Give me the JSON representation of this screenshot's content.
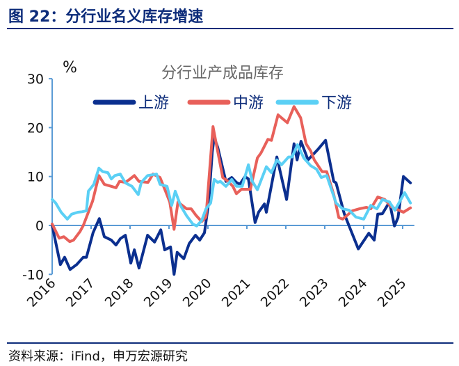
{
  "header": {
    "title": "图 22：分行业名义库存增速"
  },
  "footer": {
    "source": "资料来源：iFind，申万宏源研究"
  },
  "chart_data": {
    "type": "line",
    "title": "分行业产成品库存",
    "ylabel": "%",
    "xlabel": "",
    "x_unit": "year",
    "xlim": [
      2016,
      2025.3
    ],
    "ylim": [
      -10,
      30
    ],
    "yticks": [
      -10,
      0,
      10,
      20,
      30
    ],
    "xticks": [
      "2016",
      "2017",
      "2018",
      "2019",
      "2020",
      "2021",
      "2022",
      "2023",
      "2024",
      "2025"
    ],
    "grid": false,
    "legend": "top",
    "series": [
      {
        "name": "上游",
        "color": "#0b2f8f",
        "points": [
          [
            2016.0,
            0
          ],
          [
            2016.21,
            -8
          ],
          [
            2016.32,
            -6.5
          ],
          [
            2016.46,
            -9
          ],
          [
            2016.63,
            -8
          ],
          [
            2016.8,
            -6.5
          ],
          [
            2016.88,
            -6.5
          ],
          [
            2017.05,
            -1.5
          ],
          [
            2017.21,
            1.4
          ],
          [
            2017.34,
            -2.3
          ],
          [
            2017.52,
            -3
          ],
          [
            2017.64,
            -4
          ],
          [
            2017.75,
            -2.7
          ],
          [
            2017.88,
            -2
          ],
          [
            2018.02,
            -7.7
          ],
          [
            2018.11,
            -5
          ],
          [
            2018.23,
            -8.7
          ],
          [
            2018.45,
            -2
          ],
          [
            2018.63,
            -3.4
          ],
          [
            2018.79,
            -0.9
          ],
          [
            2018.89,
            -5
          ],
          [
            2019.04,
            -4.4
          ],
          [
            2019.13,
            -10
          ],
          [
            2019.21,
            -5.5
          ],
          [
            2019.38,
            -6.8
          ],
          [
            2019.52,
            -3.7
          ],
          [
            2019.68,
            -2
          ],
          [
            2019.79,
            -3
          ],
          [
            2019.91,
            -1.5
          ],
          [
            2020.02,
            4.8
          ],
          [
            2020.11,
            15
          ],
          [
            2020.16,
            18
          ],
          [
            2020.25,
            16
          ],
          [
            2020.46,
            9
          ],
          [
            2020.61,
            9.8
          ],
          [
            2020.73,
            8.8
          ],
          [
            2020.82,
            8.4
          ],
          [
            2020.95,
            10
          ],
          [
            2021.04,
            9.5
          ],
          [
            2021.21,
            0.6
          ],
          [
            2021.3,
            2.7
          ],
          [
            2021.45,
            4.4
          ],
          [
            2021.5,
            2.7
          ],
          [
            2021.77,
            14
          ],
          [
            2022.02,
            5.3
          ],
          [
            2022.21,
            16.7
          ],
          [
            2022.29,
            13.4
          ],
          [
            2022.39,
            17.2
          ],
          [
            2022.57,
            13.4
          ],
          [
            2022.82,
            15.5
          ],
          [
            2023.02,
            17.4
          ],
          [
            2023.23,
            9
          ],
          [
            2023.29,
            8.7
          ],
          [
            2023.5,
            2.4
          ],
          [
            2023.64,
            -0.4
          ],
          [
            2023.86,
            -4.8
          ],
          [
            2024.13,
            -1.6
          ],
          [
            2024.27,
            -3
          ],
          [
            2024.36,
            2.3
          ],
          [
            2024.48,
            2.4
          ],
          [
            2024.66,
            4.8
          ],
          [
            2024.79,
            -0.1
          ],
          [
            2024.88,
            1.6
          ],
          [
            2025.02,
            10
          ],
          [
            2025.2,
            8.7
          ]
        ]
      },
      {
        "name": "中游",
        "color": "#e8605a",
        "points": [
          [
            2016.0,
            0.3
          ],
          [
            2016.18,
            -2.6
          ],
          [
            2016.3,
            -2.3
          ],
          [
            2016.45,
            -3.3
          ],
          [
            2016.55,
            -3
          ],
          [
            2016.71,
            -1.3
          ],
          [
            2016.8,
            0
          ],
          [
            2017.04,
            5
          ],
          [
            2017.2,
            10.2
          ],
          [
            2017.34,
            8.4
          ],
          [
            2017.52,
            8
          ],
          [
            2017.64,
            7.7
          ],
          [
            2017.73,
            9
          ],
          [
            2017.88,
            8.8
          ],
          [
            2018.0,
            9.5
          ],
          [
            2018.11,
            10.2
          ],
          [
            2018.23,
            9
          ],
          [
            2018.46,
            8.8
          ],
          [
            2018.59,
            10.5
          ],
          [
            2018.77,
            9.8
          ],
          [
            2018.91,
            7
          ],
          [
            2019.02,
            4.8
          ],
          [
            2019.13,
            -0.8
          ],
          [
            2019.23,
            4.8
          ],
          [
            2019.45,
            3.4
          ],
          [
            2019.57,
            3.4
          ],
          [
            2019.7,
            2
          ],
          [
            2019.84,
            0.8
          ],
          [
            2019.95,
            1.7
          ],
          [
            2020.13,
            20.2
          ],
          [
            2020.23,
            16
          ],
          [
            2020.38,
            9.8
          ],
          [
            2020.52,
            9
          ],
          [
            2020.64,
            8
          ],
          [
            2020.73,
            6.5
          ],
          [
            2020.86,
            7.4
          ],
          [
            2021.09,
            7.4
          ],
          [
            2021.27,
            13.8
          ],
          [
            2021.36,
            14.8
          ],
          [
            2021.54,
            17.6
          ],
          [
            2021.63,
            17.4
          ],
          [
            2021.8,
            22.6
          ],
          [
            2022.04,
            21
          ],
          [
            2022.21,
            24.3
          ],
          [
            2022.38,
            22
          ],
          [
            2022.52,
            16.7
          ],
          [
            2022.64,
            15.2
          ],
          [
            2022.73,
            13.4
          ],
          [
            2022.93,
            11
          ],
          [
            2023.05,
            11
          ],
          [
            2023.23,
            6.3
          ],
          [
            2023.36,
            1.6
          ],
          [
            2023.46,
            1.3
          ],
          [
            2023.71,
            3
          ],
          [
            2023.89,
            3.4
          ],
          [
            2024.07,
            3.7
          ],
          [
            2024.18,
            3.4
          ],
          [
            2024.36,
            5.8
          ],
          [
            2024.54,
            5.3
          ],
          [
            2024.71,
            3.8
          ],
          [
            2025.02,
            2.7
          ],
          [
            2025.2,
            3.6
          ]
        ]
      },
      {
        "name": "下游",
        "color": "#5bd0f5",
        "points": [
          [
            2016.0,
            5.3
          ],
          [
            2016.09,
            4.6
          ],
          [
            2016.23,
            2.7
          ],
          [
            2016.39,
            1.3
          ],
          [
            2016.5,
            2.3
          ],
          [
            2016.66,
            2.7
          ],
          [
            2016.77,
            2.8
          ],
          [
            2016.88,
            3
          ],
          [
            2016.93,
            7
          ],
          [
            2017.07,
            8.4
          ],
          [
            2017.2,
            11.7
          ],
          [
            2017.3,
            11
          ],
          [
            2017.43,
            10.8
          ],
          [
            2017.52,
            9.5
          ],
          [
            2017.61,
            10.2
          ],
          [
            2017.75,
            10.5
          ],
          [
            2017.88,
            8.7
          ],
          [
            2018.05,
            8
          ],
          [
            2018.21,
            6.3
          ],
          [
            2018.29,
            8.8
          ],
          [
            2018.45,
            10.2
          ],
          [
            2018.68,
            10.5
          ],
          [
            2018.77,
            8.4
          ],
          [
            2018.95,
            8
          ],
          [
            2019.07,
            4.1
          ],
          [
            2019.16,
            7
          ],
          [
            2019.3,
            4
          ],
          [
            2019.45,
            2
          ],
          [
            2019.61,
            0.3
          ],
          [
            2019.71,
            -0.1
          ],
          [
            2019.84,
            1
          ],
          [
            2019.95,
            3.4
          ],
          [
            2020.07,
            4.6
          ],
          [
            2020.16,
            9.4
          ],
          [
            2020.25,
            8.8
          ],
          [
            2020.32,
            9
          ],
          [
            2020.46,
            8
          ],
          [
            2020.55,
            8.8
          ],
          [
            2020.61,
            9.4
          ],
          [
            2020.73,
            8
          ],
          [
            2020.88,
            8
          ],
          [
            2021.04,
            12.4
          ],
          [
            2021.14,
            9
          ],
          [
            2021.27,
            7.3
          ],
          [
            2021.5,
            12
          ],
          [
            2021.63,
            10.8
          ],
          [
            2021.77,
            13.4
          ],
          [
            2021.89,
            12.4
          ],
          [
            2022.07,
            14
          ],
          [
            2022.16,
            14
          ],
          [
            2022.3,
            16.5
          ],
          [
            2022.46,
            13.8
          ],
          [
            2022.64,
            12.2
          ],
          [
            2022.79,
            11.5
          ],
          [
            2022.91,
            9.8
          ],
          [
            2023.05,
            10.2
          ],
          [
            2023.29,
            4.6
          ],
          [
            2023.46,
            3.4
          ],
          [
            2023.63,
            3.1
          ],
          [
            2023.8,
            1.7
          ],
          [
            2024.0,
            1.3
          ],
          [
            2024.18,
            4.1
          ],
          [
            2024.34,
            3.4
          ],
          [
            2024.48,
            5.3
          ],
          [
            2024.66,
            4.8
          ],
          [
            2024.8,
            3.1
          ],
          [
            2025.05,
            6.7
          ],
          [
            2025.2,
            4.6
          ]
        ]
      }
    ]
  }
}
